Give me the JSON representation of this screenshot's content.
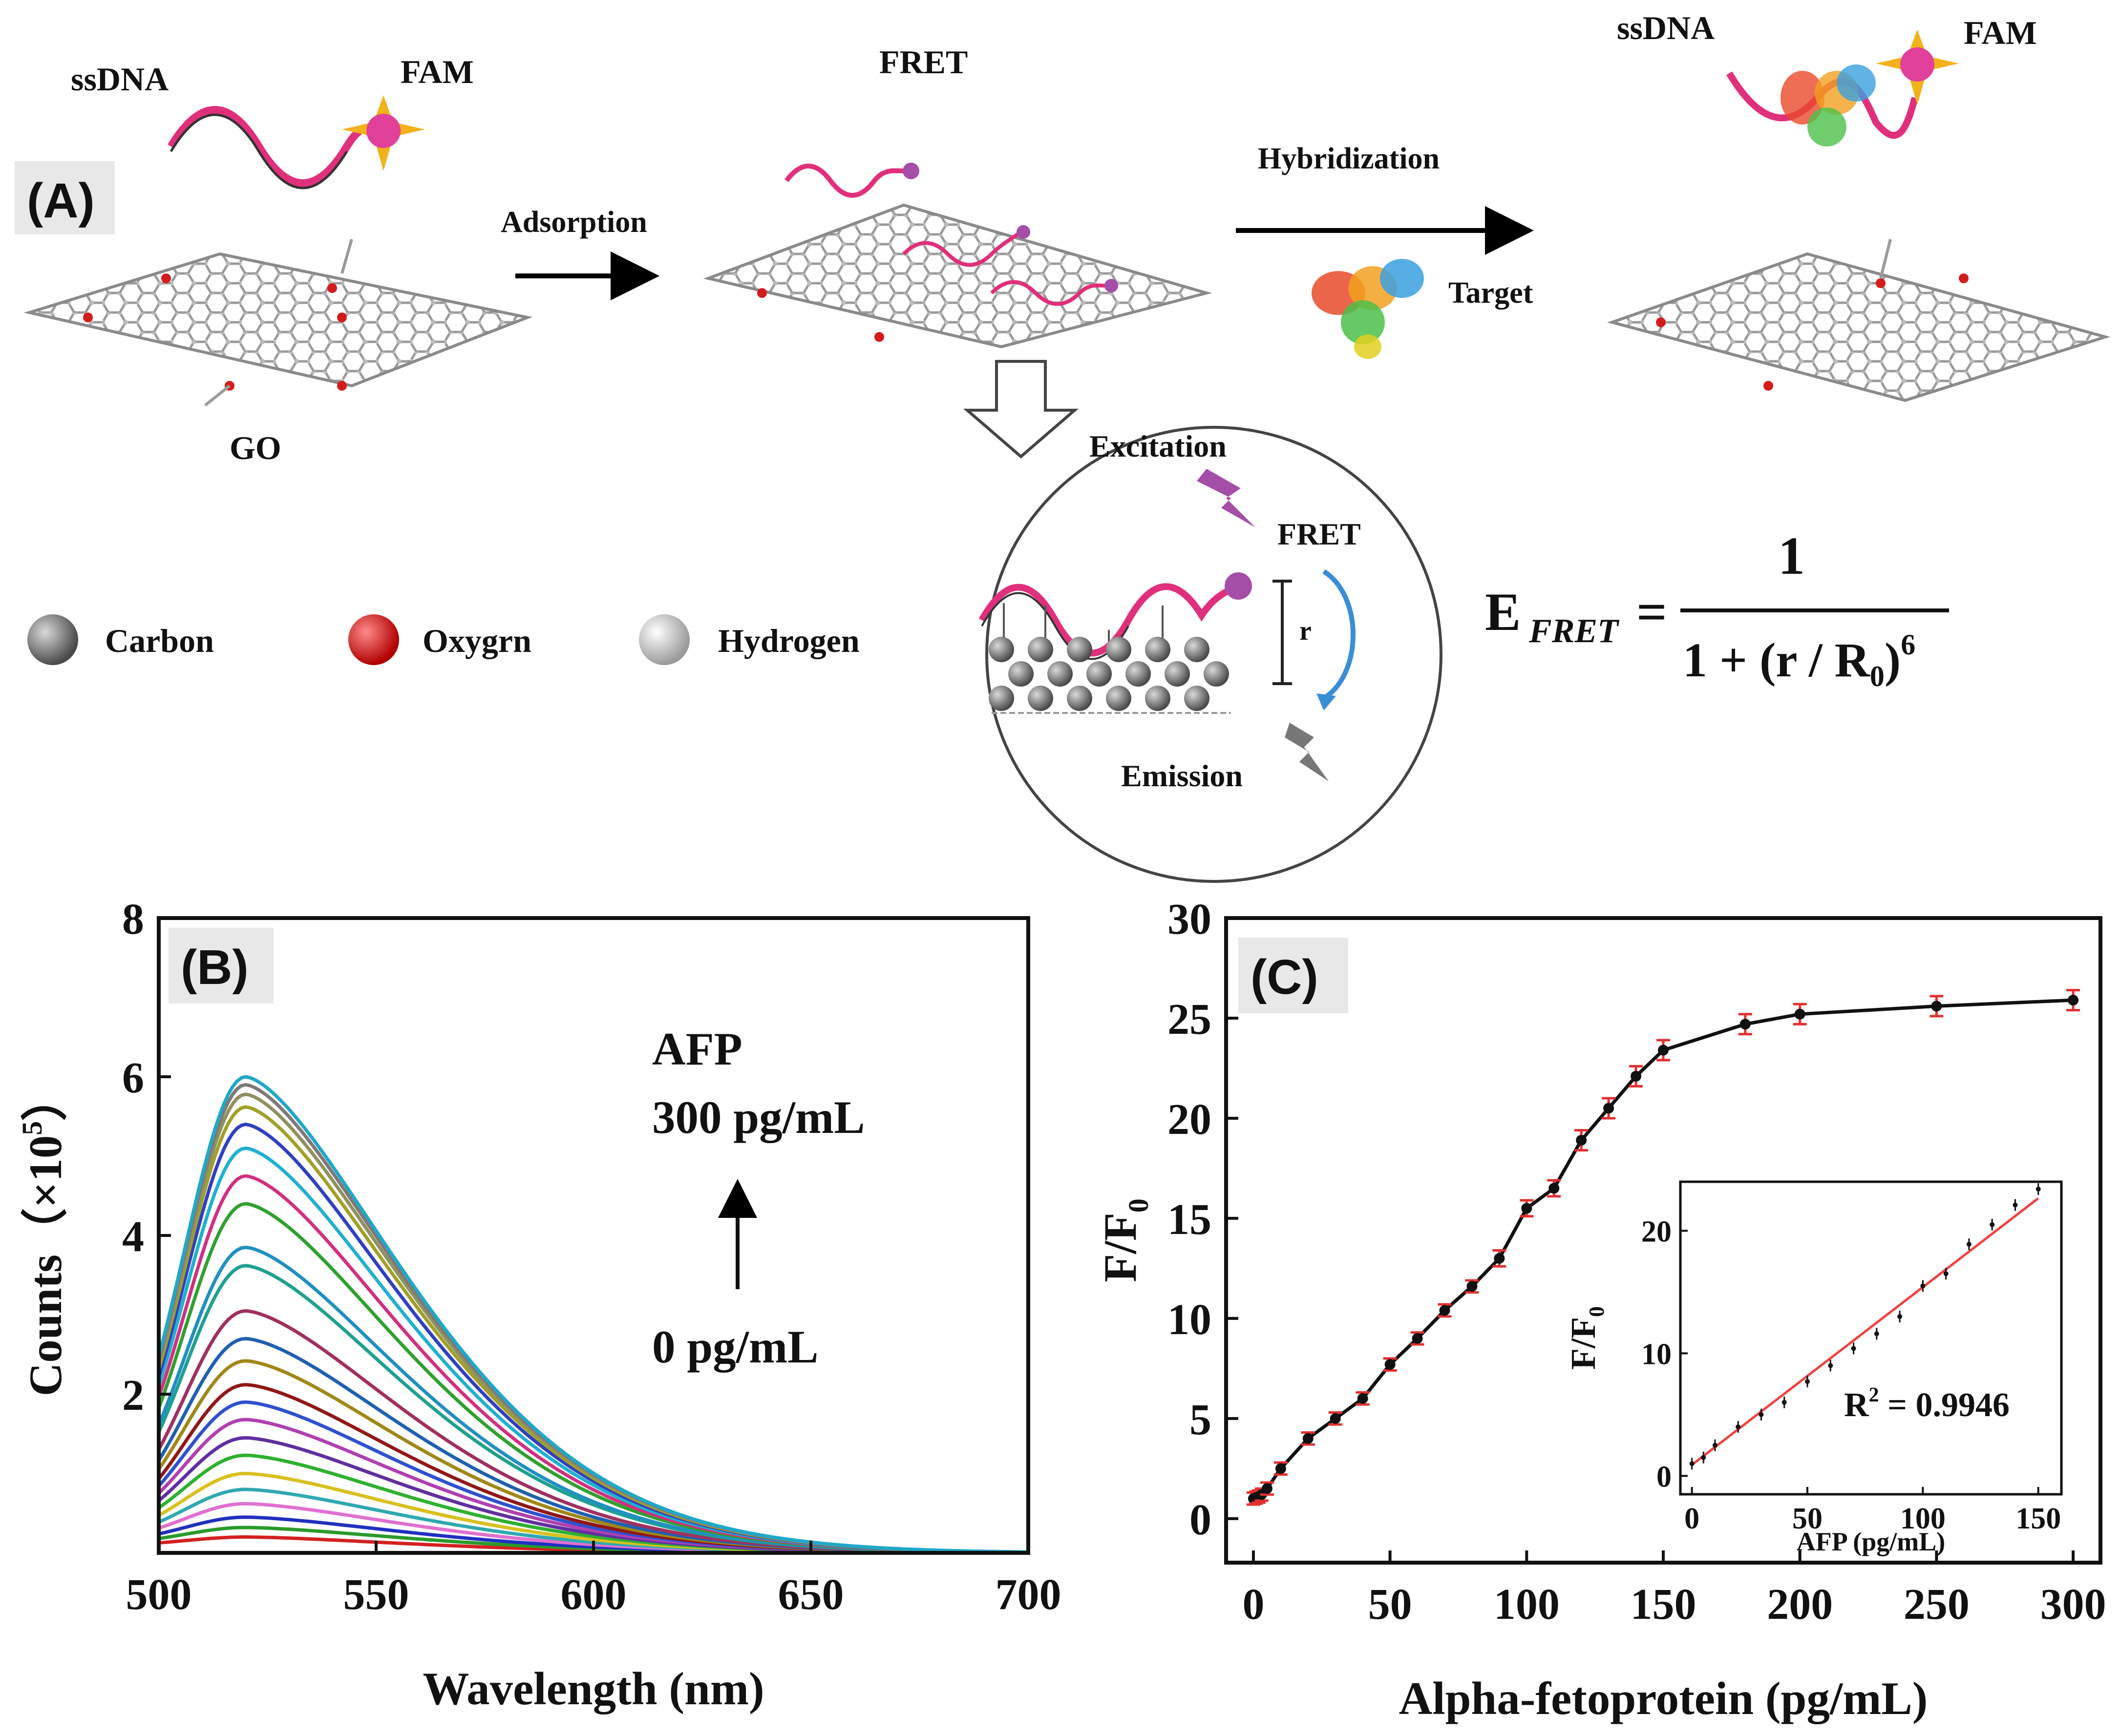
{
  "panel_a": {
    "label": "(A)",
    "ssdna_label": "ssDNA",
    "fam_label": "FAM",
    "fret_label": "FRET",
    "go_label": "GO",
    "adsorption_label": "Adsorption",
    "hybridization_label": "Hybridization",
    "target_label": "Target",
    "ssdna_label_right": "ssDNA",
    "fam_label_right": "FAM",
    "excitation_label": "Excitation",
    "fret_inset_label": "FRET",
    "emission_label": "Emission",
    "r_label": "r",
    "legend": [
      {
        "label": "Carbon",
        "color": "#6b6b6b"
      },
      {
        "label": "Oxygrn",
        "color": "#d41c1c"
      },
      {
        "label": "Hydrogen",
        "color": "#cfcfcf"
      }
    ],
    "equation": {
      "lhs": "E",
      "lhs_sub": "FRET",
      "equals": "=",
      "numerator": "1",
      "denominator": "1 + (r / R",
      "denominator_sub": "0",
      "denominator_close": ")",
      "exponent": "6"
    },
    "colors": {
      "strand": "#e0307c",
      "fam": "#e0409a",
      "star": "#f2b21c",
      "excitation": "#a44ea8",
      "emission": "#777777",
      "arc": "#3a8ed6"
    }
  },
  "chart_data": [
    {
      "type": "line",
      "panel_label": "(B)",
      "xlabel": "Wavelength (nm)",
      "ylabel": "Counts（×10",
      "ylabel_exp": "5",
      "ylabel_close": "）",
      "xlim": [
        500,
        700
      ],
      "ylim": [
        0,
        8
      ],
      "xticks": [
        "500",
        "550",
        "600",
        "650",
        "700"
      ],
      "yticks": [
        "2",
        "4",
        "6",
        "8"
      ],
      "annotation": {
        "top_title": "AFP",
        "top_value": "300 pg/mL",
        "bottom_value": "0 pg/mL"
      },
      "peak_x": 520,
      "series_peaks": [
        0.2,
        0.32,
        0.45,
        0.62,
        0.8,
        1.0,
        1.23,
        1.45,
        1.68,
        1.9,
        2.12,
        2.42,
        2.7,
        3.05,
        3.62,
        3.85,
        4.4,
        4.75,
        5.1,
        5.4,
        5.62,
        5.78,
        5.9,
        6.0
      ],
      "series_colors": [
        "#d42020",
        "#2a9a2a",
        "#2030c0",
        "#e070d0",
        "#30a8b0",
        "#d8c020",
        "#30b030",
        "#6030a0",
        "#b040b0",
        "#3050d0",
        "#901818",
        "#a08818",
        "#2060b0",
        "#a03060",
        "#20a090",
        "#2090c0",
        "#30a030",
        "#d03080",
        "#20b0d0",
        "#3040c0",
        "#a0a028",
        "#909060",
        "#807878",
        "#20a8c8"
      ]
    },
    {
      "type": "line",
      "panel_label": "(C)",
      "xlabel": "Alpha-fetoprotein (pg/mL)",
      "ylabel": "F/F",
      "ylabel_sub": "0",
      "xlim": [
        -10,
        310
      ],
      "ylim": [
        -2.2,
        30
      ],
      "xticks": [
        "0",
        "50",
        "100",
        "150",
        "200",
        "250",
        "300"
      ],
      "yticks": [
        "0",
        "5",
        "10",
        "15",
        "20",
        "25",
        "30"
      ],
      "x": [
        0,
        1,
        2,
        3,
        5,
        10,
        20,
        30,
        40,
        50,
        60,
        70,
        80,
        90,
        100,
        110,
        120,
        130,
        140,
        150,
        180,
        200,
        250,
        300
      ],
      "y": [
        1.0,
        1.05,
        1.1,
        1.2,
        1.5,
        2.5,
        4.0,
        5.0,
        6.0,
        7.7,
        9.0,
        10.4,
        11.6,
        13.0,
        15.5,
        16.5,
        18.9,
        20.5,
        22.1,
        23.4,
        24.7,
        25.2,
        25.6,
        25.9
      ],
      "error": [
        0.3,
        0.3,
        0.3,
        0.3,
        0.3,
        0.3,
        0.3,
        0.3,
        0.3,
        0.3,
        0.3,
        0.3,
        0.3,
        0.4,
        0.4,
        0.4,
        0.5,
        0.5,
        0.5,
        0.5,
        0.5,
        0.5,
        0.5,
        0.5
      ],
      "line_color": "#111111",
      "error_color": "#e23030"
    },
    {
      "type": "scatter",
      "inset_of": "(C)",
      "xlabel": "AFP (pg/mL)",
      "ylabel": "F/F",
      "ylabel_sub": "0",
      "xlim": [
        -5,
        160
      ],
      "ylim": [
        -1.5,
        24
      ],
      "xticks": [
        "0",
        "50",
        "100",
        "150"
      ],
      "yticks": [
        "0",
        "10",
        "20"
      ],
      "annotation": "R",
      "annotation_sup": "2",
      "annotation_value": " = 0.9946",
      "x": [
        0,
        5,
        10,
        20,
        30,
        40,
        50,
        60,
        70,
        80,
        90,
        100,
        110,
        120,
        130,
        140,
        150
      ],
      "y": [
        1.0,
        1.5,
        2.5,
        4.0,
        5.0,
        6.0,
        7.7,
        9.0,
        10.4,
        11.6,
        13.0,
        15.5,
        16.5,
        18.9,
        20.5,
        22.1,
        23.4
      ],
      "fit": {
        "slope": 0.145,
        "intercept": 0.9
      },
      "fit_color": "#ee4444"
    }
  ]
}
